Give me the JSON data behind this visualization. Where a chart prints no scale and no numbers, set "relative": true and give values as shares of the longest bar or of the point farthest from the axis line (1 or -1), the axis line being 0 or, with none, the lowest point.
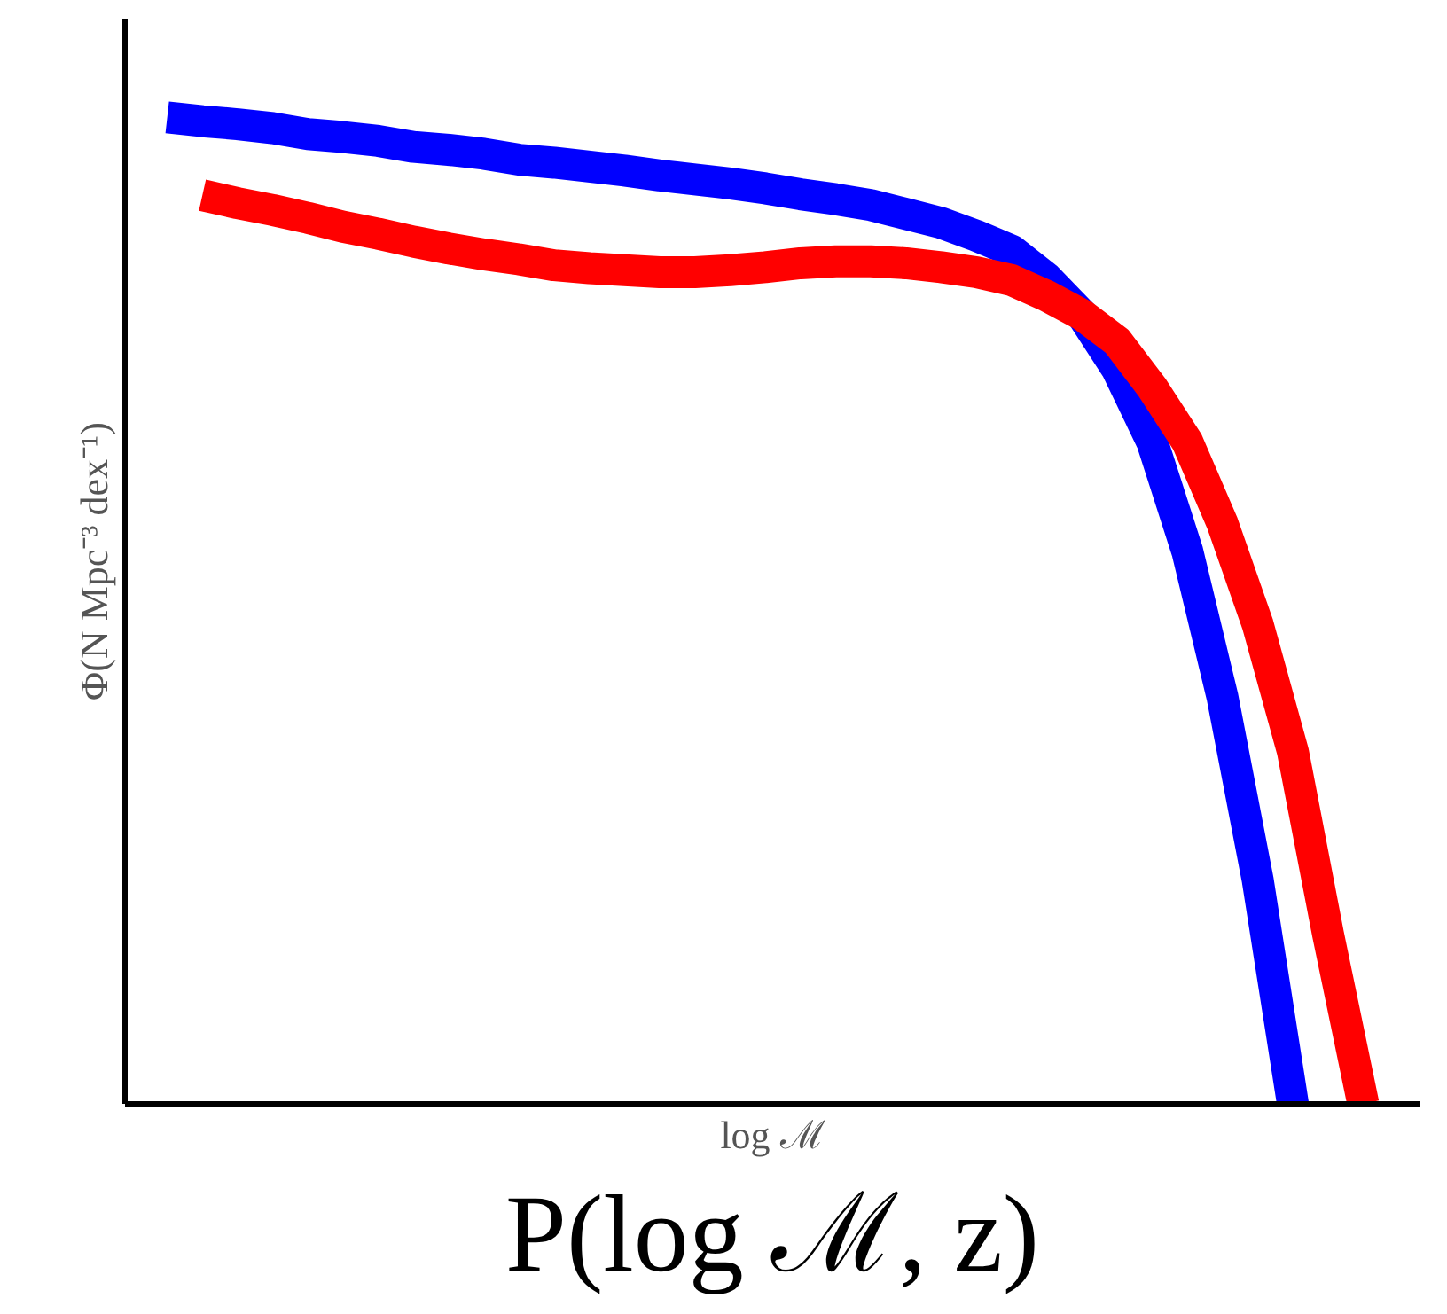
{
  "chart_data": {
    "type": "line",
    "title": "P(log ℳ, z)",
    "xlabel": "log ℳ",
    "ylabel": "Φ(N Mpc⁻³ dex⁻¹)",
    "relative": true,
    "line_style": "solid",
    "categories": [
      null,
      null,
      null,
      null,
      null,
      null,
      null,
      null,
      null,
      null,
      null,
      null,
      null,
      null,
      null,
      null,
      null,
      null,
      null,
      null,
      null,
      null,
      null,
      null,
      null,
      null,
      null,
      null,
      null,
      null,
      null,
      null,
      null,
      null,
      null
    ],
    "series": [
      {
        "color": "#0000ff",
        "values": [
          1.0,
          0.996,
          0.993,
          0.989,
          0.983,
          0.98,
          0.976,
          0.97,
          0.967,
          0.963,
          0.957,
          0.954,
          0.95,
          0.946,
          0.941,
          0.937,
          0.933,
          0.928,
          0.922,
          0.917,
          0.911,
          0.902,
          0.893,
          0.88,
          0.865,
          0.837,
          0.8,
          0.745,
          0.671,
          0.56,
          0.412,
          0.227,
          0.0,
          null,
          null
        ]
      },
      {
        "color": "#ff0000",
        "values": [
          null,
          0.921,
          0.913,
          0.906,
          0.898,
          0.889,
          0.882,
          0.874,
          0.867,
          0.861,
          0.856,
          0.85,
          0.847,
          0.845,
          0.843,
          0.843,
          0.845,
          0.848,
          0.852,
          0.854,
          0.854,
          0.852,
          0.848,
          0.843,
          0.835,
          0.819,
          0.8,
          0.773,
          0.726,
          0.671,
          0.588,
          0.486,
          0.357,
          0.172,
          0.0
        ]
      }
    ]
  }
}
